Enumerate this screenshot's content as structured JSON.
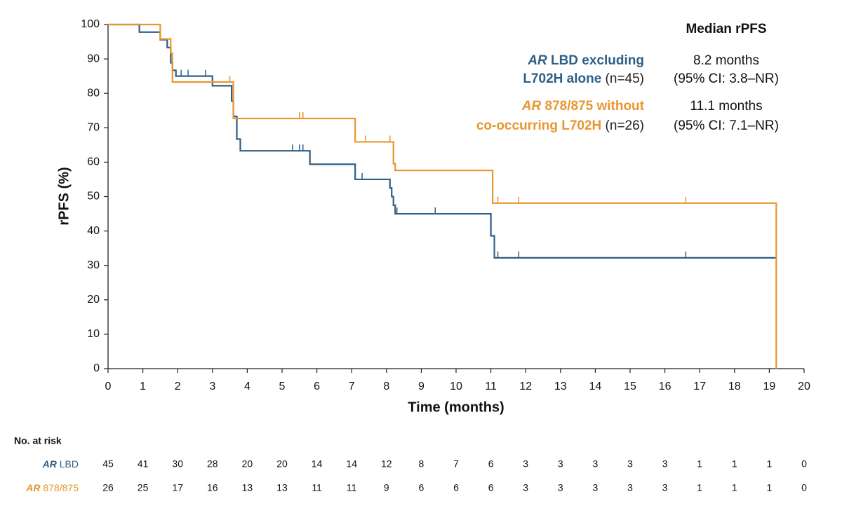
{
  "chart_data": {
    "type": "step",
    "xlabel": "Time (months)",
    "ylabel": "rPFS (%)",
    "xlim": [
      0,
      20
    ],
    "xticks": [
      0,
      1,
      2,
      3,
      4,
      5,
      6,
      7,
      8,
      9,
      10,
      11,
      12,
      13,
      14,
      15,
      16,
      17,
      18,
      19,
      20
    ],
    "ylim": [
      0,
      100
    ],
    "yticks": [
      0,
      10,
      20,
      30,
      40,
      50,
      60,
      70,
      80,
      90,
      100
    ],
    "legend_header": "Median rPFS",
    "series": [
      {
        "name": "AR LBD",
        "name_parts": [
          "AR",
          " LBD"
        ],
        "color": "#2e5f86",
        "label_lines": [
          [
            "AR",
            " LBD excluding"
          ],
          [
            "L702H alone",
            " (n=45)"
          ]
        ],
        "median_lines": [
          "8.2 months",
          "(95% CI: 3.8–NR)"
        ],
        "x": [
          0,
          0.9,
          1.5,
          1.7,
          1.8,
          1.85,
          1.95,
          3.0,
          3.55,
          3.6,
          3.7,
          3.8,
          5.8,
          7.1,
          8.1,
          8.15,
          8.2,
          8.25,
          11.0,
          11.1,
          19.2
        ],
        "values": [
          100,
          97.8,
          95.6,
          93.3,
          88.9,
          86.7,
          85,
          82.2,
          77.8,
          73.3,
          66.7,
          63.3,
          59.4,
          55,
          52.5,
          50,
          47.5,
          45,
          38.6,
          32.2,
          32.2
        ],
        "censor_x": [
          2.1,
          2.3,
          2.8,
          5.3,
          5.5,
          5.6,
          7.3,
          8.1,
          8.3,
          9.4,
          11.2,
          11.8,
          16.6
        ],
        "at_risk": [
          45,
          41,
          30,
          28,
          20,
          20,
          14,
          14,
          12,
          8,
          7,
          6,
          3,
          3,
          3,
          3,
          3,
          1,
          1,
          1,
          0
        ]
      },
      {
        "name": "AR 878/875",
        "name_parts": [
          "AR",
          " 878/875"
        ],
        "color": "#e8962f",
        "label_lines": [
          [
            "AR",
            " 878/875 without"
          ],
          [
            "co-occurring L702H",
            " (n=26)"
          ]
        ],
        "median_lines": [
          "11.1 months",
          "(95% CI: 7.1–NR)"
        ],
        "x": [
          0,
          1.5,
          1.8,
          1.85,
          3.6,
          7.1,
          8.2,
          8.25,
          11.05,
          19.2
        ],
        "values": [
          100,
          95.8,
          91.7,
          83.3,
          72.7,
          65.9,
          59.6,
          57.6,
          48.1,
          0
        ],
        "censor_x": [
          3.5,
          5.5,
          5.6,
          7.4,
          8.1,
          8.2,
          11.2,
          11.8,
          16.6
        ],
        "at_risk": [
          26,
          25,
          17,
          16,
          13,
          13,
          11,
          11,
          9,
          6,
          6,
          6,
          3,
          3,
          3,
          3,
          3,
          1,
          1,
          1,
          0
        ]
      }
    ],
    "risk_table_title": "No. at risk"
  }
}
